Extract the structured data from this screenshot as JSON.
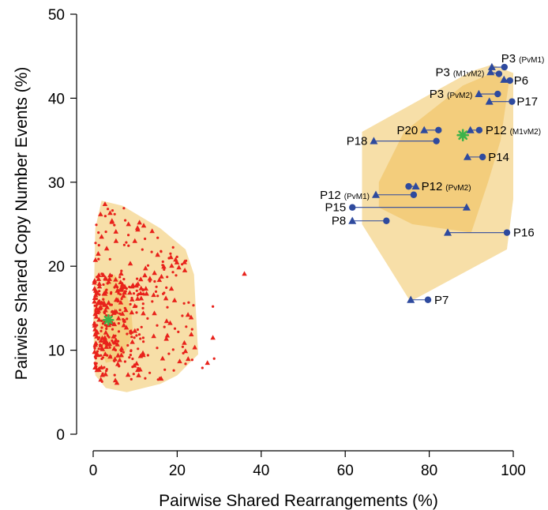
{
  "chart_data": {
    "type": "scatter",
    "xlabel": "Pairwise Shared Rearrangements (%)",
    "ylabel": "Pairwise Shared Copy Number Events (%)",
    "xlim": [
      0,
      100
    ],
    "ylim": [
      0,
      50
    ],
    "xticks": [
      0,
      20,
      40,
      60,
      80,
      100
    ],
    "yticks": [
      0,
      10,
      20,
      30,
      40,
      50
    ],
    "grid": false,
    "colors": {
      "hull_outer": "#f7dfa8",
      "hull_inner": "#f2c76e",
      "inter_patient_points": "#e8221b",
      "intra_patient_points": "#2e4a9e",
      "centroid": "#3db34a"
    },
    "inter_patient_cloud": {
      "outer_hull": [
        [
          2,
          27.8
        ],
        [
          7,
          27.2
        ],
        [
          16,
          24.5
        ],
        [
          22,
          22
        ],
        [
          24,
          19
        ],
        [
          25,
          9.5
        ],
        [
          20,
          7
        ],
        [
          16,
          6
        ],
        [
          8,
          5
        ],
        [
          3,
          5.5
        ],
        [
          0.5,
          7
        ],
        [
          0,
          13
        ],
        [
          0.5,
          24.5
        ]
      ],
      "inner_hull": [
        [
          3,
          18.5
        ],
        [
          5,
          19
        ],
        [
          7,
          18
        ],
        [
          9,
          15
        ],
        [
          9.5,
          12
        ],
        [
          7,
          9
        ],
        [
          3,
          8.5
        ],
        [
          1.5,
          11
        ],
        [
          1.5,
          15
        ]
      ],
      "centroid": [
        3.6,
        13.6
      ],
      "outliers": [
        [
          36,
          19.1
        ],
        [
          28.5,
          15.2
        ],
        [
          28.5,
          11.5
        ],
        [
          28.8,
          9.0
        ],
        [
          27.2,
          8.5
        ],
        [
          26,
          7.9
        ]
      ]
    },
    "intra_patient_hull": {
      "outer": [
        [
          64,
          36
        ],
        [
          90,
          43.2
        ],
        [
          95,
          44
        ],
        [
          100,
          43
        ],
        [
          100,
          28
        ],
        [
          98.5,
          22
        ],
        [
          75.5,
          15.8
        ],
        [
          64,
          25
        ]
      ],
      "inner": [
        [
          68,
          30
        ],
        [
          74,
          36
        ],
        [
          88,
          41.5
        ],
        [
          95,
          43
        ],
        [
          99,
          42
        ],
        [
          97,
          35
        ],
        [
          94,
          30
        ],
        [
          90,
          24
        ],
        [
          76,
          25
        ],
        [
          68,
          27
        ]
      ],
      "centroid": [
        88,
        35.6
      ]
    },
    "pairs": [
      {
        "label": "P3",
        "sub": "(PvM1)",
        "tri": [
          94.9,
          43.7
        ],
        "circ": [
          97.9,
          43.7
        ]
      },
      {
        "label": "P3",
        "sub": "(M1vM2)",
        "tri": [
          94.6,
          43.1
        ],
        "circ": [
          96.6,
          42.9
        ]
      },
      {
        "label": "P6",
        "sub": "",
        "tri": [
          97.8,
          42.2
        ],
        "circ": [
          99.2,
          42.1
        ]
      },
      {
        "label": "P3",
        "sub": "(PvM2)",
        "tri": [
          91.8,
          40.5
        ],
        "circ": [
          96.3,
          40.5
        ]
      },
      {
        "label": "P17",
        "sub": "",
        "tri": [
          94.3,
          39.6
        ],
        "circ": [
          99.7,
          39.6
        ]
      },
      {
        "label": "P20",
        "sub": "",
        "tri": [
          78.8,
          36.2
        ],
        "circ": [
          82.2,
          36.2
        ]
      },
      {
        "label": "P12",
        "sub": "(M1vM2)",
        "tri": [
          89.8,
          36.2
        ],
        "circ": [
          91.9,
          36.2
        ]
      },
      {
        "label": "P18",
        "sub": "",
        "tri": [
          66.8,
          34.9
        ],
        "circ": [
          81.7,
          34.9
        ]
      },
      {
        "label": "P14",
        "sub": "",
        "tri": [
          89.1,
          33.0
        ],
        "circ": [
          92.7,
          33.0
        ]
      },
      {
        "label": "P12",
        "sub": "(PvM1)",
        "tri": [
          67.3,
          28.5
        ],
        "circ": [
          76.3,
          28.5
        ]
      },
      {
        "label": "P12",
        "sub": "(PvM2)",
        "tri": [
          76.8,
          29.5
        ],
        "circ": [
          75.1,
          29.5
        ]
      },
      {
        "label": "P15",
        "sub": "",
        "tri": [
          88.9,
          27.0
        ],
        "circ": [
          61.7,
          27.0
        ]
      },
      {
        "label": "P8",
        "sub": "",
        "tri": [
          61.7,
          25.4
        ],
        "circ": [
          69.8,
          25.4
        ]
      },
      {
        "label": "P16",
        "sub": "",
        "tri": [
          84.4,
          24.0
        ],
        "circ": [
          98.5,
          24.0
        ]
      },
      {
        "label": "P7",
        "sub": "",
        "tri": [
          75.6,
          16.0
        ],
        "circ": [
          79.7,
          16.0
        ]
      }
    ]
  }
}
